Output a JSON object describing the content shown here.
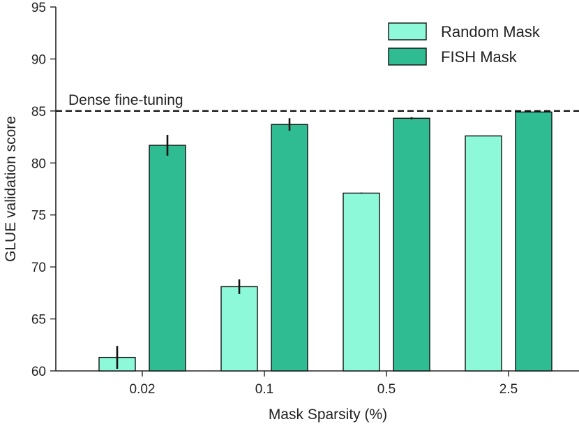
{
  "chart_data": {
    "type": "bar",
    "title": "",
    "xlabel": "Mask Sparsity (%)",
    "ylabel": "GLUE validation score",
    "ylim": [
      60,
      95
    ],
    "yticks": [
      60,
      65,
      70,
      75,
      80,
      85,
      90,
      95
    ],
    "categories": [
      "0.02",
      "0.1",
      "0.5",
      "2.5"
    ],
    "series": [
      {
        "name": "Random Mask",
        "color": "#8ef9d9",
        "values": [
          61.3,
          68.1,
          77.1,
          82.6
        ],
        "errors": [
          1.1,
          0.7,
          0.05,
          0.0
        ]
      },
      {
        "name": "FISH Mask",
        "color": "#2fbc93",
        "values": [
          81.7,
          83.7,
          84.3,
          84.9
        ],
        "errors": [
          1.0,
          0.6,
          0.1,
          0.0
        ]
      }
    ],
    "reference_line": {
      "label": "Dense fine-tuning",
      "value": 85.0,
      "style": "dashed"
    },
    "legend": {
      "placement": "top-right"
    },
    "grid": false
  }
}
